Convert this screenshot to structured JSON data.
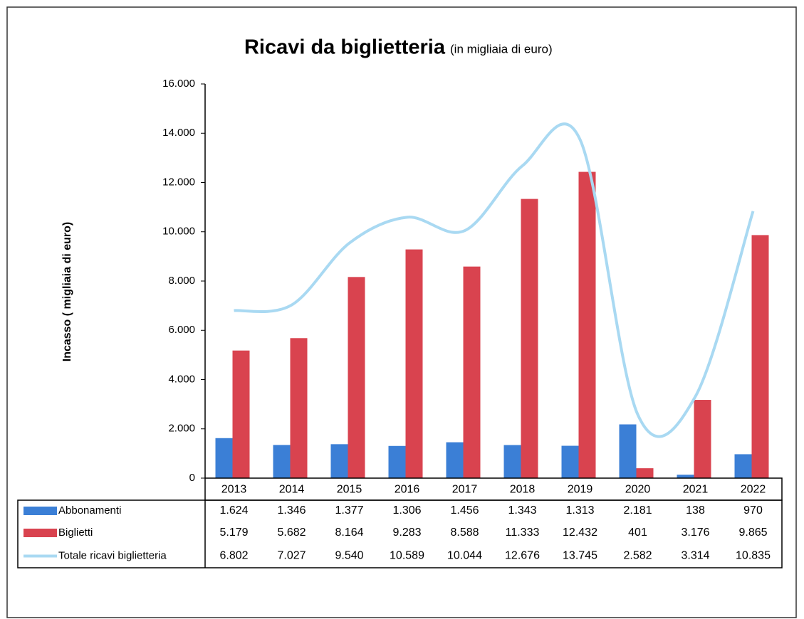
{
  "chart_data": {
    "type": "bar",
    "title": "Ricavi da biglietteria",
    "subtitle": "(in migliaia di euro)",
    "y_label": "Incasso ( migliaia di euro)",
    "categories": [
      "2013",
      "2014",
      "2015",
      "2016",
      "2017",
      "2018",
      "2019",
      "2020",
      "2021",
      "2022"
    ],
    "series": [
      {
        "name": "Abbonamenti",
        "type": "bar",
        "color": "#3b7fd6",
        "values": [
          1624,
          1346,
          1377,
          1306,
          1456,
          1343,
          1313,
          2181,
          138,
          970
        ],
        "value_labels": [
          "1.624",
          "1.346",
          "1.377",
          "1.306",
          "1.456",
          "1.343",
          "1.313",
          "2.181",
          "138",
          "970"
        ]
      },
      {
        "name": "Biglietti",
        "type": "bar",
        "color": "#d9434f",
        "values": [
          5179,
          5682,
          8164,
          9283,
          8588,
          11333,
          12432,
          401,
          3176,
          9865
        ],
        "value_labels": [
          "5.179",
          "5.682",
          "8.164",
          "9.283",
          "8.588",
          "11.333",
          "12.432",
          "401",
          "3.176",
          "9.865"
        ]
      },
      {
        "name": "Totale  ricavi biglietteria",
        "type": "line",
        "color": "#a9d9f2",
        "values": [
          6802,
          7027,
          9540,
          10589,
          10044,
          12676,
          13745,
          2582,
          3314,
          10835
        ],
        "value_labels": [
          "6.802",
          "7.027",
          "9.540",
          "10.589",
          "10.044",
          "12.676",
          "13.745",
          "2.582",
          "3.314",
          "10.835"
        ]
      }
    ],
    "ylim": [
      0,
      16000
    ],
    "yticks": [
      0,
      {
        "value": 2000,
        "label": "2.000"
      },
      {
        "value": 4000,
        "label": "4.000"
      },
      {
        "value": 6000,
        "label": "6.000"
      },
      {
        "value": 8000,
        "label": "8.000"
      },
      {
        "value": 10000,
        "label": "10.000"
      },
      {
        "value": 12000,
        "label": "12.000"
      },
      {
        "value": 14000,
        "label": "14.000"
      },
      {
        "value": 16000,
        "label": "16.000"
      }
    ]
  }
}
